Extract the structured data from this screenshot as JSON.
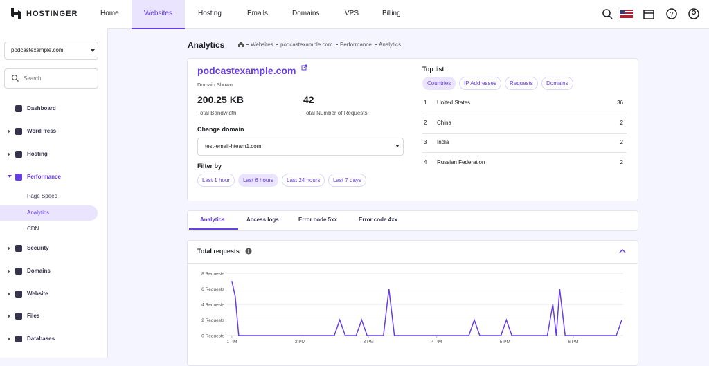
{
  "header": {
    "logo": "HOSTINGER",
    "nav": [
      "Home",
      "Websites",
      "Hosting",
      "Emails",
      "Domains",
      "VPS",
      "Billing"
    ]
  },
  "sidebar": {
    "domain": "podcastexample.com",
    "search": "Search",
    "menu": [
      {
        "label": "Dashboard"
      },
      {
        "label": "WordPress"
      },
      {
        "label": "Hosting"
      },
      {
        "label": "Performance",
        "children": [
          "Page Speed",
          "Analytics",
          "CDN"
        ]
      },
      {
        "label": "Security"
      },
      {
        "label": "Domains"
      },
      {
        "label": "Website"
      },
      {
        "label": "Files"
      },
      {
        "label": "Databases"
      }
    ]
  },
  "page": {
    "title": "Analytics",
    "breadcrumb": [
      "Websites",
      "podcastexample.com",
      "Performance",
      "Analytics"
    ]
  },
  "domain_card": {
    "domain": "podcastexample.com",
    "domain_caption": "Domain Shown",
    "stats": [
      {
        "value": "200.25 KB",
        "label": "Total Bandwidth"
      },
      {
        "value": "42",
        "label": "Total Number of Requests"
      }
    ],
    "change_domain_label": "Change domain",
    "selected_domain": "test-email-hteam1.com",
    "filter_label": "Filter by",
    "filters": [
      "Last 1 hour",
      "Last 6 hours",
      "Last 24 hours",
      "Last 7 days"
    ]
  },
  "top_list": {
    "title": "Top list",
    "tabs": [
      "Countries",
      "IP Addresses",
      "Requests",
      "Domains"
    ],
    "rows": [
      [
        "1",
        "United States",
        "36"
      ],
      [
        "2",
        "China",
        "2"
      ],
      [
        "3",
        "India",
        "2"
      ],
      [
        "4",
        "Russian Federation",
        "2"
      ]
    ]
  },
  "tabs": [
    "Analytics",
    "Access logs",
    "Error code 5xx",
    "Error code 4xx"
  ],
  "chart_card": {
    "title": "Total requests"
  },
  "chart_data": {
    "type": "line",
    "x": [
      13.0,
      13.05,
      13.1,
      14.5,
      14.58,
      14.66,
      14.82,
      14.9,
      14.98,
      15.22,
      15.3,
      15.38,
      16.47,
      16.55,
      16.63,
      16.94,
      17.02,
      17.1,
      17.62,
      17.7,
      17.75,
      17.8,
      17.88,
      18.63,
      18.71
    ],
    "series": [
      {
        "color": "#673de6",
        "values": [
          7,
          5,
          0,
          0,
          2,
          0,
          0,
          2,
          0,
          0,
          6,
          0,
          0,
          2,
          0,
          0,
          2,
          0,
          0,
          4,
          0,
          6,
          0,
          0,
          2
        ]
      }
    ],
    "xlim": [
      12.93,
      18.73
    ],
    "xticks": [
      {
        "value": 13,
        "label": "1 PM"
      },
      {
        "value": 14,
        "label": "2 PM"
      },
      {
        "value": 15,
        "label": "3 PM"
      },
      {
        "value": 16,
        "label": "4 PM"
      },
      {
        "value": 17,
        "label": "5 PM"
      },
      {
        "value": 18,
        "label": "6 PM"
      }
    ],
    "ylim": [
      0,
      8
    ],
    "yticks": [
      {
        "value": 0,
        "label": "0 Requests"
      },
      {
        "value": 2,
        "label": "2 Requests"
      },
      {
        "value": 4,
        "label": "4 Requests"
      },
      {
        "value": 6,
        "label": "6 Requests"
      },
      {
        "value": 8,
        "label": "8 Requests"
      }
    ],
    "grid": true
  }
}
